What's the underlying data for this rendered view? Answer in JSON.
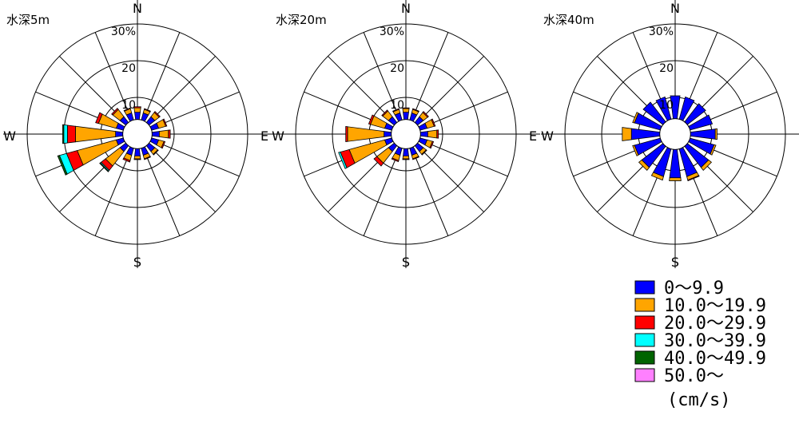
{
  "chart_data": [
    {
      "type": "polar-bar",
      "title": "水深5m",
      "directions": [
        "N",
        "NNE",
        "NE",
        "ENE",
        "E",
        "ESE",
        "SE",
        "SSE",
        "S",
        "SSW",
        "SW",
        "WSW",
        "W",
        "WNW",
        "NW",
        "NNW"
      ],
      "rlim": [
        0,
        30
      ],
      "rticks": [
        "10",
        "20",
        "30%"
      ],
      "series": [
        {
          "name": "0～9.9",
          "values": [
            6,
            6,
            6,
            6,
            6,
            6,
            6,
            6,
            6,
            6,
            6,
            6,
            6,
            6,
            6,
            6
          ]
        },
        {
          "name": "10.0～19.9",
          "values": [
            1.2,
            1,
            1.5,
            2,
            2.5,
            1.5,
            1,
            1,
            0.8,
            1.5,
            5,
            11,
            11,
            5,
            2.5,
            1.2
          ]
        },
        {
          "name": "20.0～29.9",
          "values": [
            0.3,
            0.2,
            0.3,
            0.3,
            0.5,
            0.3,
            0.2,
            0.2,
            0.2,
            0.4,
            1.5,
            3,
            2.2,
            0.8,
            0.4,
            0.2
          ]
        },
        {
          "name": "30.0～39.9",
          "values": [
            0,
            0,
            0,
            0,
            0,
            0,
            0,
            0,
            0,
            0,
            0.3,
            2,
            1,
            0,
            0,
            0
          ]
        },
        {
          "name": "40.0～49.9",
          "values": [
            0,
            0,
            0,
            0,
            0,
            0,
            0,
            0,
            0,
            0,
            0.2,
            0.5,
            0.3,
            0,
            0,
            0
          ]
        },
        {
          "name": "50.0～",
          "values": [
            0,
            0,
            0,
            0,
            0,
            0,
            0,
            0,
            0,
            0,
            0,
            0,
            0,
            0,
            0,
            0
          ]
        }
      ]
    },
    {
      "type": "polar-bar",
      "title": "水深20m",
      "directions": [
        "N",
        "NNE",
        "NE",
        "ENE",
        "E",
        "ESE",
        "SE",
        "SSE",
        "S",
        "SSW",
        "SW",
        "WSW",
        "W",
        "WNW",
        "NW",
        "NNW"
      ],
      "rlim": [
        0,
        30
      ],
      "rticks": [
        "10",
        "20",
        "30%"
      ],
      "series": [
        {
          "name": "0～9.9",
          "values": [
            6,
            6,
            6,
            6,
            6,
            6,
            6,
            6,
            6,
            6,
            6,
            6,
            6,
            6,
            6,
            6
          ]
        },
        {
          "name": "10.0～19.9",
          "values": [
            1,
            1,
            1.5,
            2,
            2.5,
            1.5,
            1,
            1,
            0.8,
            1.5,
            4,
            10,
            10,
            4,
            2,
            1
          ]
        },
        {
          "name": "20.0～29.9",
          "values": [
            0.2,
            0.2,
            0.3,
            0.3,
            0.4,
            0.3,
            0.2,
            0.2,
            0.2,
            0.3,
            1,
            2.5,
            0.5,
            0.5,
            0.3,
            0.2
          ]
        },
        {
          "name": "30.0～39.9",
          "values": [
            0,
            0,
            0,
            0,
            0,
            0,
            0,
            0,
            0,
            0,
            0,
            0.5,
            0,
            0,
            0,
            0
          ]
        },
        {
          "name": "40.0～49.9",
          "values": [
            0,
            0,
            0,
            0,
            0,
            0,
            0,
            0,
            0,
            0,
            0,
            0,
            0,
            0,
            0,
            0
          ]
        },
        {
          "name": "50.0～",
          "values": [
            0,
            0,
            0,
            0,
            0,
            0,
            0,
            0,
            0,
            0,
            0,
            0,
            0,
            0,
            0,
            0
          ]
        }
      ]
    },
    {
      "type": "polar-bar",
      "title": "水深40m",
      "directions": [
        "N",
        "NNE",
        "NE",
        "ENE",
        "E",
        "ESE",
        "SE",
        "SSE",
        "S",
        "SSW",
        "SW",
        "WSW",
        "W",
        "WNW",
        "NW",
        "NNW"
      ],
      "rlim": [
        0,
        30
      ],
      "rticks": [
        "10",
        "20",
        "30%"
      ],
      "series": [
        {
          "name": "0～9.9",
          "values": [
            10.5,
            10.5,
            10.5,
            10.5,
            11,
            11,
            11.5,
            12,
            12,
            12,
            11.5,
            11.5,
            12,
            11.5,
            11,
            10.5
          ]
        },
        {
          "name": "10.0～19.9",
          "values": [
            0,
            0,
            0,
            0,
            0.5,
            0.5,
            1,
            1,
            0.8,
            1,
            1,
            0.5,
            2.5,
            0.5,
            0,
            0
          ]
        },
        {
          "name": "20.0～29.9",
          "values": [
            0,
            0,
            0,
            0,
            0,
            0,
            0,
            0.2,
            0,
            0,
            0,
            0,
            0,
            0,
            0,
            0
          ]
        },
        {
          "name": "30.0～39.9",
          "values": [
            0,
            0,
            0,
            0,
            0,
            0,
            0,
            0,
            0,
            0,
            0,
            0,
            0,
            0,
            0,
            0
          ]
        },
        {
          "name": "40.0～49.9",
          "values": [
            0,
            0,
            0,
            0,
            0,
            0,
            0,
            0,
            0,
            0,
            0,
            0,
            0,
            0,
            0,
            0
          ]
        },
        {
          "name": "50.0～",
          "values": [
            0,
            0,
            0,
            0,
            0,
            0,
            0,
            0,
            0,
            0,
            0,
            0,
            0,
            0,
            0,
            0
          ]
        }
      ]
    }
  ],
  "compass": {
    "n": "N",
    "e": "E",
    "s": "S",
    "w": "W"
  },
  "colors": [
    "#0000ff",
    "#ffa500",
    "#ff0000",
    "#00ffff",
    "#006400",
    "#ff80ff"
  ],
  "legend": {
    "items": [
      "0～9.9",
      "10.0～19.9",
      "20.0～29.9",
      "30.0～39.9",
      "40.0～49.9",
      "50.0～"
    ],
    "unit": "(cm/s)"
  }
}
